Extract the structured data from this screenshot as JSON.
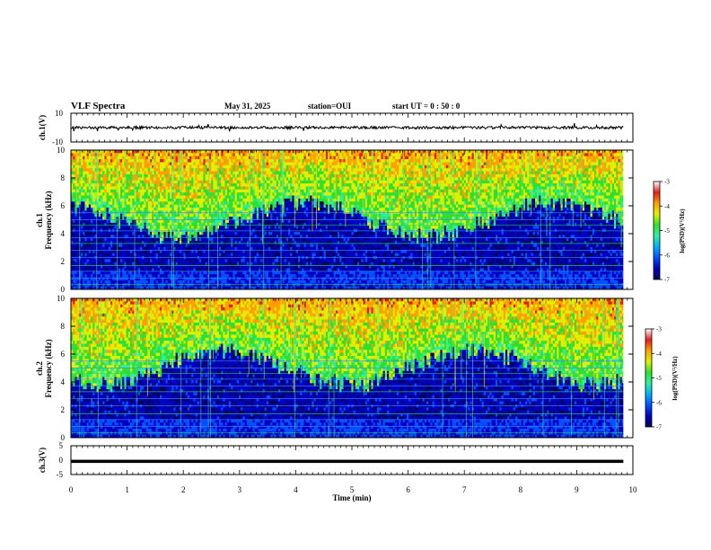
{
  "header": {
    "title": "VLF Spectra",
    "date": "May 31, 2025",
    "station": "station=OUI",
    "start_time": "start  UT =   0 : 50 : 0"
  },
  "chart_data": {
    "type": "heatmap",
    "title": "VLF Spectra",
    "panels": [
      {
        "id": "ch1-waveform",
        "kind": "line",
        "ylabel": "ch.1(V)",
        "ylim": [
          -10,
          10
        ],
        "yticks": [
          "10",
          "-10"
        ],
        "baseline_v": 0
      },
      {
        "id": "ch1-spectrogram",
        "kind": "spectrogram",
        "ylabel": "Frequency (kHz)",
        "channel_label": "ch.1",
        "ylim": [
          0,
          10
        ],
        "yticks": [
          "0",
          "2",
          "4",
          "6",
          "8",
          "10"
        ]
      },
      {
        "id": "ch2-spectrogram",
        "kind": "spectrogram",
        "ylabel": "Frequency (kHz)",
        "channel_label": "ch.2",
        "ylim": [
          0,
          10
        ],
        "yticks": [
          "0",
          "2",
          "4",
          "6",
          "8",
          "10"
        ]
      },
      {
        "id": "ch3-waveform",
        "kind": "line",
        "ylabel": "ch.3(V)",
        "ylim": [
          -5,
          5
        ],
        "yticks": [
          "5",
          "0",
          "-5"
        ],
        "baseline_v": -0.5
      }
    ],
    "xlabel": "Time (min)",
    "xlim": [
      0,
      10
    ],
    "xticks": [
      "0",
      "1",
      "2",
      "3",
      "4",
      "5",
      "6",
      "7",
      "8",
      "9",
      "10"
    ],
    "data_end_min": 9.83,
    "colorbar": {
      "label": "log(PSD)(V²/Hz)",
      "range": [
        -7,
        -3
      ],
      "ticks": [
        "-7",
        "-6",
        "-5",
        "-4",
        "-3"
      ],
      "colors": [
        "#000060",
        "#0000c0",
        "#0050ff",
        "#00b0ff",
        "#30f0a0",
        "#30e030",
        "#e0f000",
        "#ffa000",
        "#e02020",
        "#ffffff"
      ]
    }
  }
}
